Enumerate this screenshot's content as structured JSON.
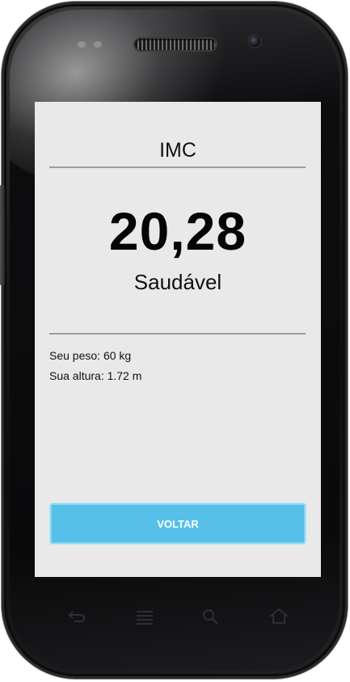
{
  "screen": {
    "title": "IMC",
    "bmi_value": "20,28",
    "bmi_status": "Saudável",
    "weight_line": "Seu peso: 60 kg",
    "height_line": "Sua altura: 1.72 m",
    "back_button_label": "VOLTAR"
  },
  "nav_keys": [
    {
      "icon": "back-icon"
    },
    {
      "icon": "menu-icon"
    },
    {
      "icon": "search-icon"
    },
    {
      "icon": "home-icon"
    }
  ],
  "colors": {
    "screen_background": "#e9e9e9",
    "button_background": "#56c0e8",
    "button_text": "#ffffff",
    "divider": "#9c9c9c"
  }
}
